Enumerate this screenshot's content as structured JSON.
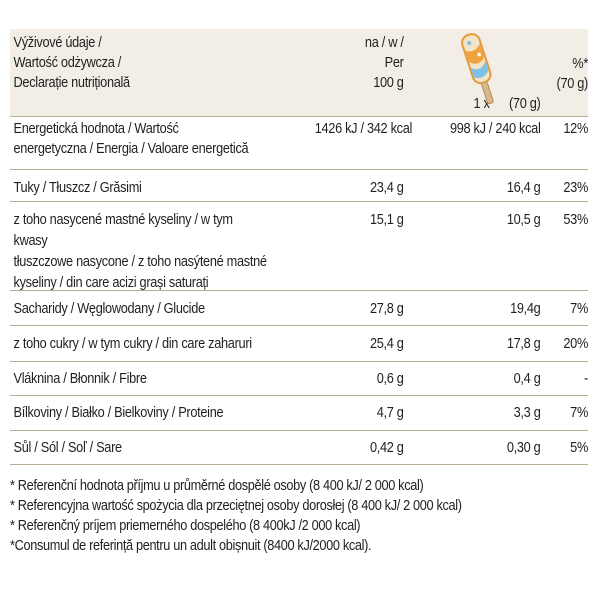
{
  "header": {
    "col1_lines": [
      "Výživové údaje /",
      "Wartość odżywcza /",
      "Declarație nutrițională"
    ],
    "col2_lines": [
      "na / w /",
      "Per",
      "100 g"
    ],
    "col3": "1 x      (70 g)",
    "col4_lines": [
      "%*",
      "(70 g)"
    ],
    "icon": "ice-cream-bar-icon"
  },
  "rows": [
    {
      "label": "Energetická hodnota / Wartość\nenergetyczna / Energia / Valoare energetică",
      "per100": "1426 kJ / 342 kcal",
      "portion": "998 kJ / 240 kcal",
      "pct": "12%"
    },
    {
      "label": "Tuky / Tłuszcz / Grăsimi",
      "per100": "23,4 g",
      "portion": "16,4 g",
      "pct": "23%"
    },
    {
      "label": "z toho nasycené mastné kyseliny / w tym kwasy\ntłuszczowe nasycone / z toho nasýtené mastné\nkyseliny / din care acizi grași saturați",
      "per100": "15,1 g",
      "portion": "10,5 g",
      "pct": "53%"
    },
    {
      "label": "Sacharidy / Węglowodany / Glucide",
      "per100": "27,8 g",
      "portion": "19,4g",
      "pct": "7%"
    },
    {
      "label": "z toho cukry / w tym cukry / din care zaharuri",
      "per100": "25,4 g",
      "portion": "17,8 g",
      "pct": "20%"
    },
    {
      "label": "Vláknina / Błonnik / Fibre",
      "per100": "0,6 g",
      "portion": "0,4 g",
      "pct": "-"
    },
    {
      "label": "Bílkoviny / Białko / Bielkoviny / Proteine",
      "per100": "4,7 g",
      "portion": "3,3 g",
      "pct": "7%"
    },
    {
      "label": "Sůl / Sól / Soľ / Sare",
      "per100": "0,42 g",
      "portion": "0,30 g",
      "pct": "5%"
    }
  ],
  "footnotes": [
    "* Referenční hodnota příjmu u průměrné dospělé osoby (8 400 kJ/ 2 000 kcal)",
    "* Referencyjna wartość spożycia dla przeciętnej osoby dorosłej (8 400 kJ/ 2 000 kcal)",
    "* Referenčný príjem priemerného dospelého (8 400kJ /2 000 kcal)",
    "*Consumul de referință pentru un adult obișnuit (8400 kJ/2000 kcal)."
  ],
  "colors": {
    "header_bg": "#f2eee6",
    "rule": "#b9ac97",
    "text": "#231f20"
  }
}
